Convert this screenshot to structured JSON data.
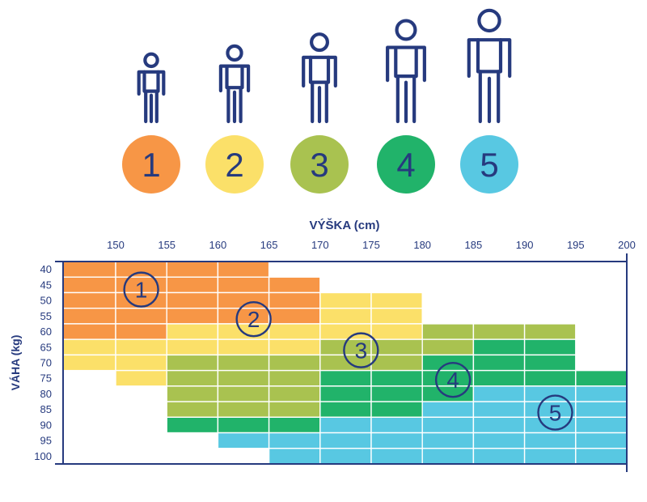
{
  "sizes": [
    {
      "label": "1",
      "color": "#f79646"
    },
    {
      "label": "2",
      "color": "#fbe069"
    },
    {
      "label": "3",
      "color": "#a9c250"
    },
    {
      "label": "4",
      "color": "#21b36a"
    },
    {
      "label": "5",
      "color": "#58c8e2"
    }
  ],
  "icons": {
    "person": "person-icon"
  },
  "chart_data": {
    "type": "heatmap",
    "title": "",
    "xlabel": "VÝŠKA (cm)",
    "ylabel": "VÁHA (kg)",
    "x_ticks": [
      150,
      155,
      160,
      165,
      170,
      175,
      180,
      185,
      190,
      195,
      200
    ],
    "y_ticks": [
      40,
      45,
      50,
      55,
      60,
      65,
      70,
      75,
      80,
      85,
      90,
      95,
      100
    ],
    "x_columns": [
      "<150",
      "150-155",
      "155-160",
      "160-165",
      "165-170",
      "170-175",
      "175-180",
      "180-185",
      "185-190",
      "190-195",
      "195-200"
    ],
    "y_rows": [
      "40",
      "45",
      "50",
      "55",
      "60",
      "65",
      "70",
      "75",
      "80",
      "85",
      "90",
      "95",
      "100"
    ],
    "grid": [
      [
        1,
        1,
        1,
        1,
        0,
        0,
        0,
        0,
        0,
        0,
        0
      ],
      [
        1,
        1,
        1,
        1,
        1,
        0,
        0,
        0,
        0,
        0,
        0
      ],
      [
        1,
        1,
        1,
        1,
        1,
        2,
        2,
        0,
        0,
        0,
        0
      ],
      [
        1,
        1,
        1,
        1,
        1,
        2,
        2,
        0,
        0,
        0,
        0
      ],
      [
        1,
        1,
        2,
        2,
        2,
        2,
        2,
        3,
        3,
        3,
        0
      ],
      [
        2,
        2,
        2,
        2,
        2,
        3,
        3,
        3,
        4,
        4,
        0
      ],
      [
        2,
        2,
        3,
        3,
        3,
        3,
        3,
        4,
        4,
        4,
        0
      ],
      [
        0,
        2,
        3,
        3,
        3,
        4,
        4,
        4,
        4,
        4,
        4
      ],
      [
        0,
        0,
        3,
        3,
        3,
        4,
        4,
        4,
        5,
        5,
        5
      ],
      [
        0,
        0,
        3,
        3,
        3,
        4,
        4,
        5,
        5,
        5,
        5
      ],
      [
        0,
        0,
        4,
        4,
        4,
        5,
        5,
        5,
        5,
        5,
        5
      ],
      [
        0,
        0,
        0,
        5,
        5,
        5,
        5,
        5,
        5,
        5,
        5
      ],
      [
        0,
        0,
        0,
        0,
        5,
        5,
        5,
        5,
        5,
        5,
        5
      ]
    ],
    "zone_labels": [
      {
        "label": "1",
        "height": 152.5,
        "weight": 46.5
      },
      {
        "label": "2",
        "height": 163.5,
        "weight": 56
      },
      {
        "label": "3",
        "height": 174,
        "weight": 66
      },
      {
        "label": "4",
        "height": 183,
        "weight": 75.5
      },
      {
        "label": "5",
        "height": 193,
        "weight": 86
      }
    ],
    "legend": "top",
    "grid_lines": true
  }
}
